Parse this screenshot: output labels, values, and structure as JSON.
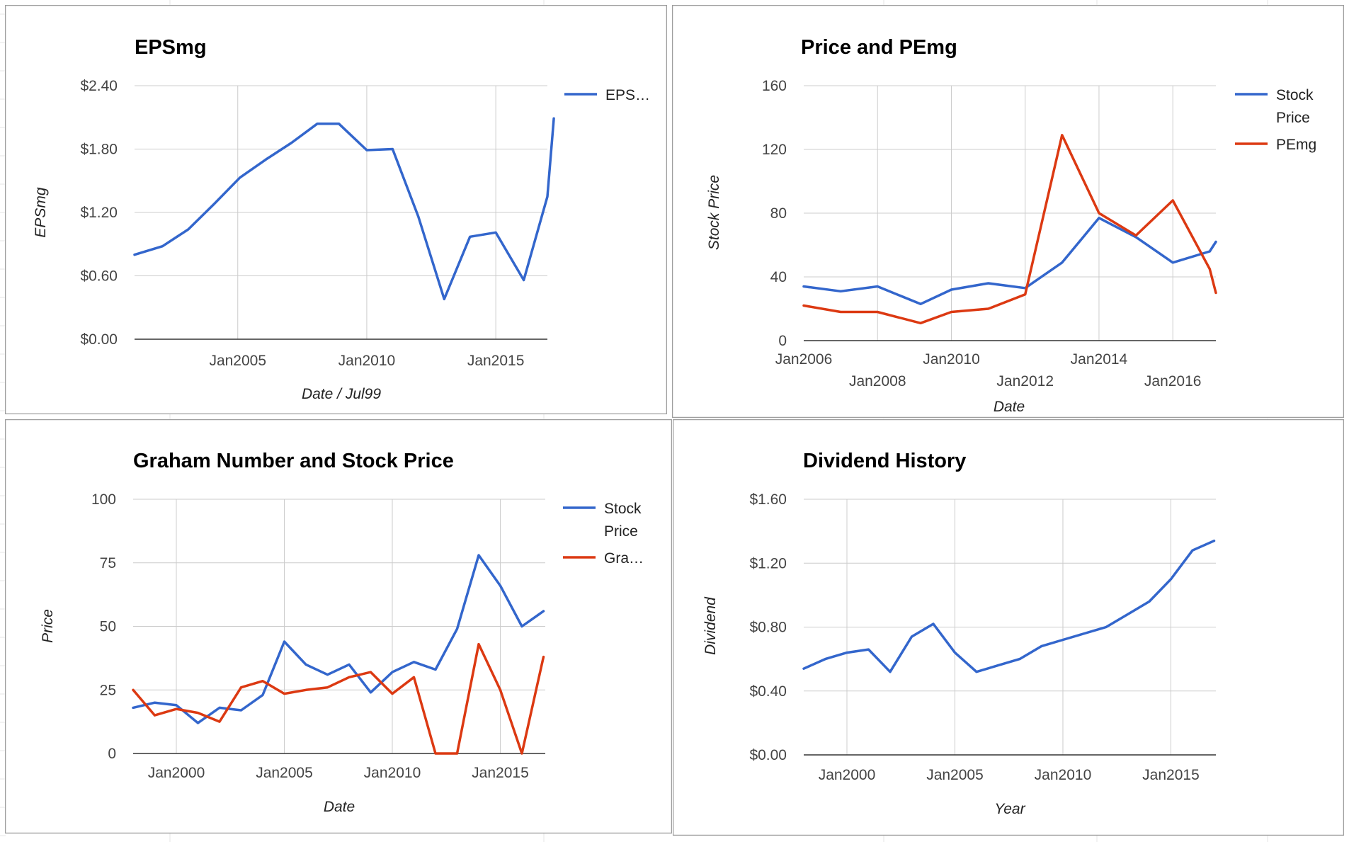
{
  "colors": {
    "blue": "#3366cc",
    "red": "#dc3912",
    "grid": "#cccccc",
    "baseline": "#333333",
    "frame": "#9e9e9e"
  },
  "charts": [
    {
      "type": "line",
      "title": "EPSmg",
      "xlabel": "Date / Jul99",
      "ylabel": "EPSmg",
      "x_ticks": [
        "Jan2005",
        "Jan2010",
        "Jan2015"
      ],
      "y_ticks": [
        "$0.00",
        "$0.60",
        "$1.20",
        "$1.80",
        "$2.40"
      ],
      "legend": [
        "EPS…"
      ]
    },
    {
      "type": "line",
      "title": "Price and PEmg",
      "xlabel": "Date",
      "ylabel": "Stock Price",
      "x_ticks": [
        "Jan2006",
        "Jan2008",
        "Jan2010",
        "Jan2012",
        "Jan2014",
        "Jan2016"
      ],
      "y_ticks": [
        "0",
        "40",
        "80",
        "120",
        "160"
      ],
      "legend": [
        [
          "Stock",
          "Price"
        ],
        [
          "PEmg"
        ]
      ]
    },
    {
      "type": "line",
      "title": "Graham Number and Stock Price",
      "xlabel": "Date",
      "ylabel": "Price",
      "x_ticks": [
        "Jan2000",
        "Jan2005",
        "Jan2010",
        "Jan2015"
      ],
      "y_ticks": [
        "0",
        "25",
        "50",
        "75",
        "100"
      ],
      "legend": [
        [
          "Stock",
          "Price"
        ],
        [
          "Gra…"
        ]
      ]
    },
    {
      "type": "line",
      "title": "Dividend History",
      "xlabel": "Year",
      "ylabel": "Dividend",
      "x_ticks": [
        "Jan2000",
        "Jan2005",
        "Jan2010",
        "Jan2015"
      ],
      "y_ticks": [
        "$0.00",
        "$0.40",
        "$0.80",
        "$1.20",
        "$1.60"
      ],
      "legend": []
    }
  ],
  "chart_data": [
    {
      "type": "line",
      "title": "EPSmg",
      "xlabel": "Date / Jul99",
      "ylabel": "EPSmg",
      "xlim": [
        "2001-01",
        "2017-01"
      ],
      "ylim": [
        0,
        2.4
      ],
      "series": [
        {
          "name": "EPS…",
          "color": "#3366cc",
          "x": [
            "2001-01",
            "2002-02",
            "2003-02",
            "2004-02",
            "2005-02",
            "2006-02",
            "2007-02",
            "2008-02",
            "2008-12",
            "2010-01",
            "2011-01",
            "2012-01",
            "2013-01",
            "2014-01",
            "2015-01",
            "2016-02",
            "2017-01",
            "2017-04"
          ],
          "y": [
            0.8,
            0.88,
            1.04,
            1.28,
            1.53,
            1.7,
            1.86,
            2.04,
            2.04,
            1.79,
            1.8,
            1.16,
            0.38,
            0.97,
            1.01,
            0.56,
            1.35,
            2.09
          ]
        }
      ]
    },
    {
      "type": "line",
      "title": "Price and PEmg",
      "xlabel": "Date",
      "ylabel": "Stock Price",
      "xlim": [
        "2006-01",
        "2017-03"
      ],
      "ylim": [
        0,
        160
      ],
      "series": [
        {
          "name": "Stock Price",
          "color": "#3366cc",
          "x": [
            "2006-01",
            "2007-01",
            "2008-01",
            "2009-03",
            "2010-01",
            "2011-01",
            "2012-01",
            "2013-01",
            "2014-01",
            "2015-01",
            "2016-01",
            "2017-01",
            "2017-03"
          ],
          "y": [
            34,
            31,
            34,
            23,
            32,
            36,
            33,
            49,
            77,
            65,
            49,
            56,
            62
          ]
        },
        {
          "name": "PEmg",
          "color": "#dc3912",
          "x": [
            "2006-01",
            "2007-01",
            "2008-01",
            "2009-03",
            "2010-01",
            "2011-01",
            "2012-01",
            "2013-01",
            "2014-01",
            "2015-01",
            "2016-01",
            "2017-01",
            "2017-03"
          ],
          "y": [
            22,
            18,
            18,
            11,
            18,
            20,
            29,
            129,
            80,
            66,
            88,
            45,
            30
          ]
        }
      ]
    },
    {
      "type": "line",
      "title": "Graham Number and Stock Price",
      "xlabel": "Date",
      "ylabel": "Price",
      "xlim": [
        "1998-01",
        "2017-02"
      ],
      "ylim": [
        0,
        100
      ],
      "series": [
        {
          "name": "Stock Price",
          "color": "#3366cc",
          "x": [
            "1998-01",
            "1999-01",
            "2000-01",
            "2001-01",
            "2002-01",
            "2003-01",
            "2004-01",
            "2005-01",
            "2006-01",
            "2007-01",
            "2008-01",
            "2009-01",
            "2010-01",
            "2011-01",
            "2012-01",
            "2013-01",
            "2014-01",
            "2015-01",
            "2016-01",
            "2017-01"
          ],
          "y": [
            18,
            20,
            19,
            12,
            18,
            17,
            23,
            44,
            35,
            31,
            35,
            24,
            32,
            36,
            33,
            49,
            78,
            66,
            50,
            56
          ]
        },
        {
          "name": "Gra…",
          "color": "#dc3912",
          "x": [
            "1998-01",
            "1999-01",
            "2000-01",
            "2001-01",
            "2002-01",
            "2003-01",
            "2004-01",
            "2005-01",
            "2006-01",
            "2007-01",
            "2008-01",
            "2009-01",
            "2010-01",
            "2011-01",
            "2012-01",
            "2013-01",
            "2014-01",
            "2015-01",
            "2016-01",
            "2017-01"
          ],
          "y": [
            25,
            15,
            17.5,
            16,
            12.5,
            26,
            28.5,
            23.5,
            25,
            26,
            30,
            32,
            23.5,
            30,
            0,
            0,
            43,
            25,
            0,
            38
          ]
        }
      ]
    },
    {
      "type": "line",
      "title": "Dividend History",
      "xlabel": "Year",
      "ylabel": "Dividend",
      "xlim": [
        "1998-01",
        "2017-02"
      ],
      "ylim": [
        0,
        1.6
      ],
      "series": [
        {
          "name": "",
          "color": "#3366cc",
          "x": [
            "1998-01",
            "1999-01",
            "2000-01",
            "2001-01",
            "2002-01",
            "2003-01",
            "2004-01",
            "2005-01",
            "2006-01",
            "2007-01",
            "2008-01",
            "2009-01",
            "2010-01",
            "2011-01",
            "2012-01",
            "2013-01",
            "2014-01",
            "2015-01",
            "2016-01",
            "2017-01"
          ],
          "y": [
            0.54,
            0.6,
            0.64,
            0.66,
            0.52,
            0.74,
            0.82,
            0.64,
            0.52,
            0.56,
            0.6,
            0.68,
            0.72,
            0.76,
            0.8,
            0.88,
            0.96,
            1.1,
            1.28,
            1.34
          ]
        }
      ]
    }
  ]
}
